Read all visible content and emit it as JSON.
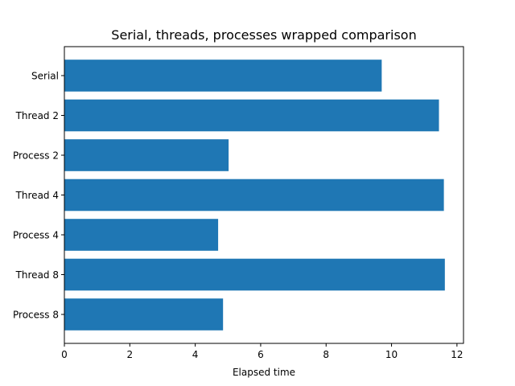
{
  "chart_data": {
    "type": "bar",
    "orientation": "horizontal",
    "title": "Serial, threads, processes wrapped comparison",
    "xlabel": "Elapsed time",
    "ylabel": "",
    "categories": [
      "Serial",
      "Thread 2",
      "Process 2",
      "Thread 4",
      "Process 4",
      "Thread 8",
      "Process 8"
    ],
    "values": [
      9.7,
      11.45,
      5.02,
      11.6,
      4.7,
      11.63,
      4.85
    ],
    "xlim": [
      0,
      12.2
    ],
    "xticks": [
      0,
      2,
      4,
      6,
      8,
      10,
      12
    ],
    "bar_color": "#1f77b4",
    "grid": false,
    "legend": "none"
  }
}
